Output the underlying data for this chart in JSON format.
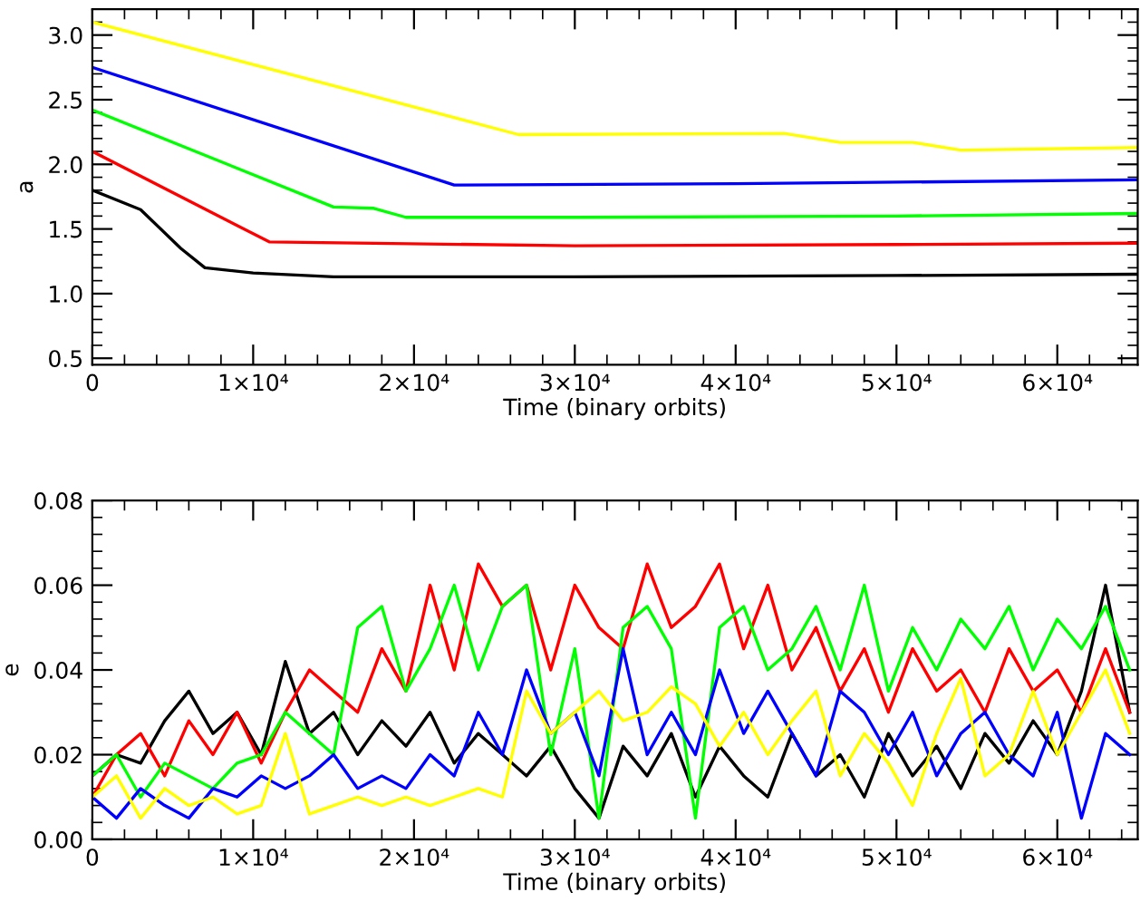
{
  "chart_data": [
    {
      "type": "line",
      "ylabel": "a",
      "xlabel": "Time (binary orbits)",
      "xlim": [
        0,
        65000
      ],
      "ylim": [
        0.45,
        3.2
      ],
      "xticks": [
        0,
        {
          "value": 10000,
          "label": "1×10⁴"
        },
        {
          "value": 20000,
          "label": "2×10⁴"
        },
        {
          "value": 30000,
          "label": "3×10⁴"
        },
        {
          "value": 40000,
          "label": "4×10⁴"
        },
        {
          "value": 50000,
          "label": "5×10⁴"
        },
        {
          "value": 60000,
          "label": "6×10⁴"
        }
      ],
      "yticks": [
        0.5,
        {
          "value": 1.0,
          "label": "1.0"
        },
        1.5,
        {
          "value": 2.0,
          "label": "2.0"
        },
        2.5,
        {
          "value": 3.0,
          "label": "3.0"
        }
      ],
      "series": [
        {
          "color": "#000000",
          "x": [
            0,
            3000,
            5500,
            7000,
            10000,
            15000,
            30000,
            50000,
            65000
          ],
          "values": [
            1.8,
            1.65,
            1.35,
            1.2,
            1.16,
            1.13,
            1.13,
            1.14,
            1.15
          ]
        },
        {
          "color": "#ff0000",
          "x": [
            0,
            11000,
            30000,
            50000,
            65000
          ],
          "values": [
            2.1,
            1.4,
            1.37,
            1.38,
            1.39
          ]
        },
        {
          "color": "#00ff00",
          "x": [
            0,
            15000,
            17500,
            19500,
            30000,
            50000,
            65000
          ],
          "values": [
            2.42,
            1.67,
            1.66,
            1.59,
            1.59,
            1.6,
            1.62
          ]
        },
        {
          "color": "#0000ff",
          "x": [
            0,
            22500,
            40000,
            65000
          ],
          "values": [
            2.75,
            1.84,
            1.85,
            1.88
          ]
        },
        {
          "color": "#ffff00",
          "x": [
            0,
            26500,
            43000,
            46500,
            51000,
            54000,
            65000
          ],
          "values": [
            3.1,
            2.23,
            2.24,
            2.17,
            2.17,
            2.11,
            2.13
          ]
        }
      ]
    },
    {
      "type": "line",
      "ylabel": "e",
      "xlabel": "Time (binary orbits)",
      "xlim": [
        0,
        65000
      ],
      "ylim": [
        0,
        0.08
      ],
      "xticks": [
        0,
        {
          "value": 10000,
          "label": "1×10⁴"
        },
        {
          "value": 20000,
          "label": "2×10⁴"
        },
        {
          "value": 30000,
          "label": "3×10⁴"
        },
        {
          "value": 40000,
          "label": "4×10⁴"
        },
        {
          "value": 50000,
          "label": "5×10⁴"
        },
        {
          "value": 60000,
          "label": "6×10⁴"
        }
      ],
      "yticks": [
        {
          "value": 0,
          "label": "0.00"
        },
        {
          "value": 0.02,
          "label": "0.02"
        },
        {
          "value": 0.04,
          "label": "0.04"
        },
        {
          "value": 0.06,
          "label": "0.06"
        },
        {
          "value": 0.08,
          "label": "0.08"
        }
      ],
      "x": [
        0,
        1500,
        3000,
        4500,
        6000,
        7500,
        9000,
        10500,
        12000,
        13500,
        15000,
        16500,
        18000,
        19500,
        21000,
        22500,
        24000,
        25500,
        27000,
        28500,
        30000,
        31500,
        33000,
        34500,
        36000,
        37500,
        39000,
        40500,
        42000,
        43500,
        45000,
        46500,
        48000,
        49500,
        51000,
        52500,
        54000,
        55500,
        57000,
        58500,
        60000,
        61500,
        63000,
        64500
      ],
      "series": [
        {
          "color": "#000000",
          "values": [
            0.015,
            0.02,
            0.018,
            0.028,
            0.035,
            0.025,
            0.03,
            0.02,
            0.042,
            0.025,
            0.03,
            0.02,
            0.028,
            0.022,
            0.03,
            0.018,
            0.025,
            0.02,
            0.015,
            0.022,
            0.012,
            0.005,
            0.022,
            0.015,
            0.025,
            0.01,
            0.022,
            0.015,
            0.01,
            0.025,
            0.015,
            0.02,
            0.01,
            0.025,
            0.015,
            0.022,
            0.012,
            0.025,
            0.018,
            0.028,
            0.02,
            0.035,
            0.06,
            0.03
          ]
        },
        {
          "color": "#ff0000",
          "values": [
            0.01,
            0.02,
            0.025,
            0.015,
            0.028,
            0.02,
            0.03,
            0.018,
            0.03,
            0.04,
            0.035,
            0.03,
            0.045,
            0.035,
            0.06,
            0.04,
            0.065,
            0.055,
            0.06,
            0.04,
            0.06,
            0.05,
            0.045,
            0.065,
            0.05,
            0.055,
            0.065,
            0.045,
            0.06,
            0.04,
            0.05,
            0.035,
            0.045,
            0.03,
            0.045,
            0.035,
            0.04,
            0.03,
            0.045,
            0.035,
            0.04,
            0.03,
            0.045,
            0.03
          ]
        },
        {
          "color": "#00ff00",
          "values": [
            0.015,
            0.02,
            0.01,
            0.018,
            0.015,
            0.012,
            0.018,
            0.02,
            0.03,
            0.025,
            0.02,
            0.05,
            0.055,
            0.035,
            0.045,
            0.06,
            0.04,
            0.055,
            0.06,
            0.02,
            0.045,
            0.005,
            0.05,
            0.055,
            0.045,
            0.005,
            0.05,
            0.055,
            0.04,
            0.045,
            0.055,
            0.04,
            0.06,
            0.035,
            0.05,
            0.04,
            0.052,
            0.045,
            0.055,
            0.04,
            0.052,
            0.045,
            0.055,
            0.04
          ]
        },
        {
          "color": "#0000ff",
          "values": [
            0.01,
            0.005,
            0.012,
            0.008,
            0.005,
            0.012,
            0.01,
            0.015,
            0.012,
            0.015,
            0.02,
            0.012,
            0.015,
            0.012,
            0.02,
            0.015,
            0.03,
            0.02,
            0.04,
            0.025,
            0.03,
            0.015,
            0.045,
            0.02,
            0.03,
            0.02,
            0.04,
            0.025,
            0.035,
            0.025,
            0.015,
            0.035,
            0.03,
            0.02,
            0.03,
            0.015,
            0.025,
            0.03,
            0.02,
            0.015,
            0.03,
            0.005,
            0.025,
            0.02
          ]
        },
        {
          "color": "#ffff00",
          "values": [
            0.01,
            0.015,
            0.005,
            0.012,
            0.008,
            0.01,
            0.006,
            0.008,
            0.025,
            0.006,
            0.008,
            0.01,
            0.008,
            0.01,
            0.008,
            0.01,
            0.012,
            0.01,
            0.035,
            0.025,
            0.03,
            0.035,
            0.028,
            0.03,
            0.036,
            0.032,
            0.022,
            0.03,
            0.02,
            0.028,
            0.035,
            0.015,
            0.025,
            0.018,
            0.008,
            0.025,
            0.038,
            0.015,
            0.02,
            0.035,
            0.02,
            0.03,
            0.04,
            0.025
          ]
        }
      ]
    }
  ]
}
